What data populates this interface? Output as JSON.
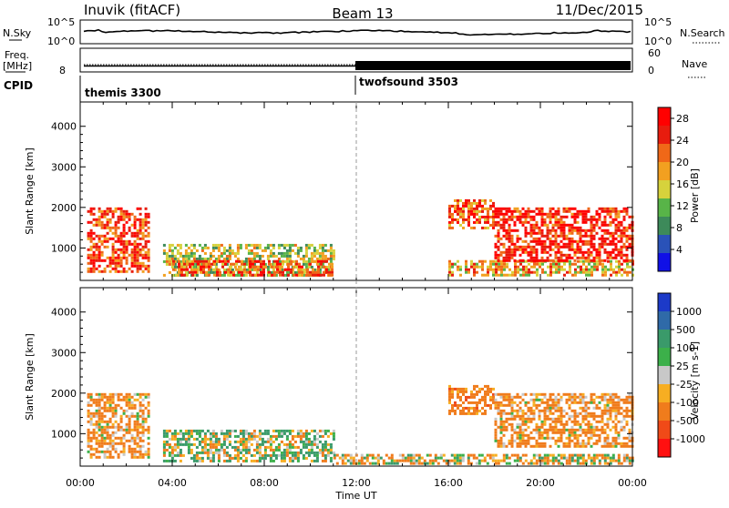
{
  "header": {
    "station": "Inuvik (fitACF)",
    "beam": "Beam 13",
    "date": "11/Dec/2015"
  },
  "noise_panel": {
    "left_label": "N.Sky",
    "right_label": "N.Search",
    "left_ticks": [
      "10^5",
      "10^0"
    ],
    "right_ticks": [
      "10^5",
      "10^0"
    ]
  },
  "freq_panel": {
    "left_label_1": "Freq.",
    "left_label_2": "[MHz]",
    "left_tick": "8",
    "right_label": "Nave",
    "right_ticks": [
      "60",
      "0"
    ]
  },
  "cpid": {
    "label": "CPID",
    "modes": [
      {
        "name": "themis 3300",
        "start_hour": 0
      },
      {
        "name": "twofsound 3503",
        "start_hour": 12
      }
    ]
  },
  "colors": {
    "power": [
      "#1010e6",
      "#2a52b8",
      "#3d8a5a",
      "#58b448",
      "#d6d23c",
      "#f2a020",
      "#f06818",
      "#e81c0e",
      "#ff0000"
    ],
    "velocity": [
      "#ff1010",
      "#f04a18",
      "#f07c1c",
      "#f7ae22",
      "#c8c8c8",
      "#3cb04a",
      "#3a9a6a",
      "#2f6aa8",
      "#1c3ac8"
    ]
  },
  "chart_data": [
    {
      "type": "heatmap",
      "panel": "power",
      "ylabel": "Slant Range [km]",
      "x_range_hours": [
        0,
        24
      ],
      "ylim": [
        200,
        4600
      ],
      "yticks": [
        "1000",
        "2000",
        "3000",
        "4000"
      ],
      "colorbar": {
        "label": "Power [dB]",
        "ticks": [
          "28",
          "24",
          "20",
          "16",
          "12",
          "8",
          "4"
        ],
        "range": [
          0,
          30
        ]
      },
      "echo_regions": [
        {
          "t0": 0.3,
          "t1": 3.0,
          "r0": 400,
          "r1": 2000,
          "value": 24
        },
        {
          "t0": 3.6,
          "t1": 11.0,
          "r0": 300,
          "r1": 1100,
          "value": 14
        },
        {
          "t0": 4.0,
          "t1": 11.0,
          "r0": 300,
          "r1": 700,
          "value": 22
        },
        {
          "t0": 16.0,
          "t1": 24.0,
          "r0": 300,
          "r1": 700,
          "value": 18
        },
        {
          "t0": 16.0,
          "t1": 18.0,
          "r0": 1500,
          "r1": 2200,
          "value": 22
        },
        {
          "t0": 18.0,
          "t1": 24.0,
          "r0": 700,
          "r1": 2000,
          "value": 26
        }
      ]
    },
    {
      "type": "heatmap",
      "panel": "velocity",
      "ylabel": "Slant Range [km]",
      "xlabel": "Time UT",
      "x_range_hours": [
        0,
        24
      ],
      "xticks": [
        "00:00",
        "04:00",
        "08:00",
        "12:00",
        "16:00",
        "20:00",
        "00:00"
      ],
      "ylim": [
        200,
        4600
      ],
      "yticks": [
        "1000",
        "2000",
        "3000",
        "4000"
      ],
      "colorbar": {
        "label": "Velocity [m s-1]",
        "ticks": [
          "1000",
          "500",
          "100",
          "25",
          "-25",
          "-100",
          "-500",
          "-1000"
        ]
      },
      "echo_regions": [
        {
          "t0": 0.3,
          "t1": 3.0,
          "r0": 400,
          "r1": 2000,
          "value": -200
        },
        {
          "t0": 3.6,
          "t1": 11.0,
          "r0": 300,
          "r1": 1100,
          "value": 60
        },
        {
          "t0": 16.0,
          "t1": 18.0,
          "r0": 1500,
          "r1": 2200,
          "value": -300
        },
        {
          "t0": 18.0,
          "t1": 24.0,
          "r0": 700,
          "r1": 2000,
          "value": -200
        },
        {
          "t0": 11.0,
          "t1": 24.0,
          "r0": 250,
          "r1": 500,
          "value": -60
        }
      ]
    }
  ]
}
